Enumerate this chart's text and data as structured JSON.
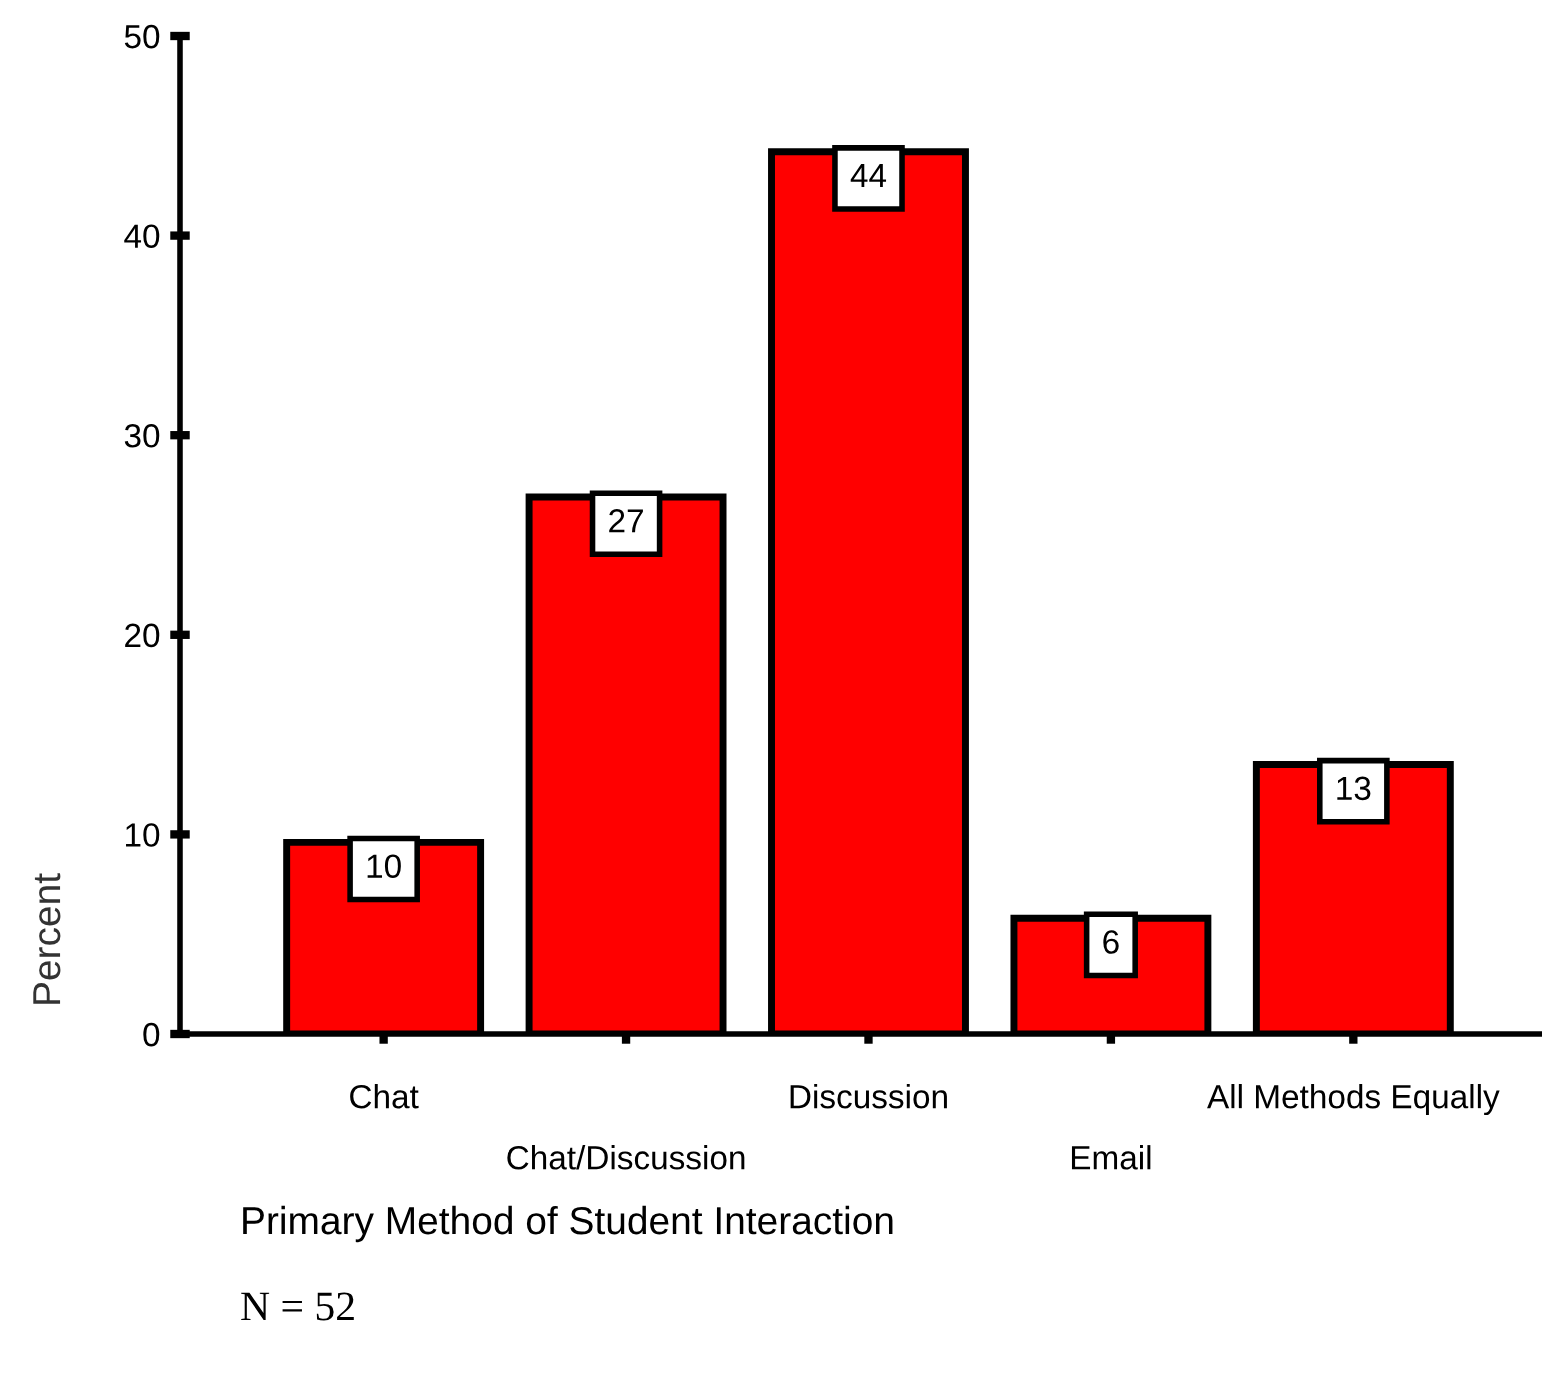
{
  "chart_data": {
    "type": "bar",
    "xlabel": "Primary Method of Student Interaction",
    "ylabel": "Percent",
    "categories": [
      "Chat",
      "Chat/Discussion",
      "Discussion",
      "Email",
      "All Methods Equally"
    ],
    "values": [
      9.6,
      26.9,
      44.2,
      5.8,
      13.5
    ],
    "value_labels": [
      "10",
      "27",
      "44",
      "6",
      "13"
    ],
    "color": "#ff0000",
    "ylim": [
      0,
      50
    ],
    "yticks": [
      0,
      10,
      20,
      30,
      40,
      50
    ],
    "grid": false,
    "legend": false,
    "annotations": [
      "N = 52"
    ]
  }
}
